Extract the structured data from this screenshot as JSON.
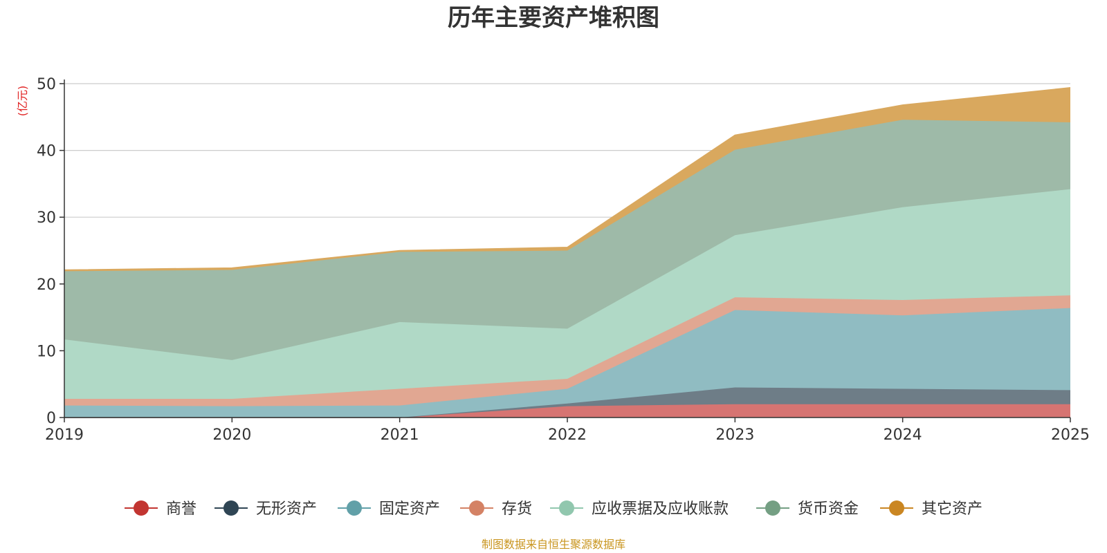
{
  "chart_data": {
    "type": "area",
    "stacked": true,
    "title": "历年主要资产堆积图",
    "ylabel": "(亿元)",
    "xlabel": "",
    "ylim": [
      0,
      50
    ],
    "yticks": [
      0,
      10,
      20,
      30,
      40,
      50
    ],
    "categories": [
      "2019",
      "2020",
      "2021",
      "2022",
      "2023",
      "2024",
      "2025"
    ],
    "series": [
      {
        "name": "商誉",
        "color": "#c23531",
        "area_color": "#d67472",
        "values": [
          0,
          0,
          0,
          1.7,
          2.0,
          2.0,
          2.0
        ]
      },
      {
        "name": "无形资产",
        "color": "#2f4554",
        "area_color": "#6e7d87",
        "values": [
          0,
          0,
          0,
          0.4,
          2.5,
          2.3,
          2.1
        ]
      },
      {
        "name": "固定资产",
        "color": "#61a0a8",
        "area_color": "#90bcc2",
        "values": [
          1.8,
          1.7,
          1.8,
          2.2,
          11.6,
          11.0,
          12.3
        ]
      },
      {
        "name": "存货",
        "color": "#d48265",
        "area_color": "#e1a792",
        "values": [
          1.0,
          1.1,
          2.5,
          1.5,
          1.9,
          2.3,
          1.9
        ]
      },
      {
        "name": "应收票据及应收账款",
        "color": "#91c7ae",
        "area_color": "#b0d9c6",
        "values": [
          8.9,
          5.8,
          10.0,
          7.5,
          9.3,
          13.9,
          15.9
        ]
      },
      {
        "name": "货币资金",
        "color": "#749f83",
        "area_color": "#9eba a8",
        "values": [
          10.2,
          13.5,
          10.5,
          11.7,
          12.8,
          13.1,
          10.0
        ]
      },
      {
        "name": "其它资产",
        "color": "#ca8622",
        "area_color": "#d9a85e",
        "values": [
          0.2,
          0.3,
          0.2,
          0.5,
          2.2,
          2.2,
          5.2
        ]
      }
    ],
    "grid": true,
    "legend_position": "bottom"
  },
  "footer": {
    "source_text": "制图数据来自恒生聚源数据库",
    "source_color": "#c9951e"
  },
  "colors": {
    "axis": "#333333",
    "gridline": "#cccccc",
    "unit_label": "#e02020"
  }
}
